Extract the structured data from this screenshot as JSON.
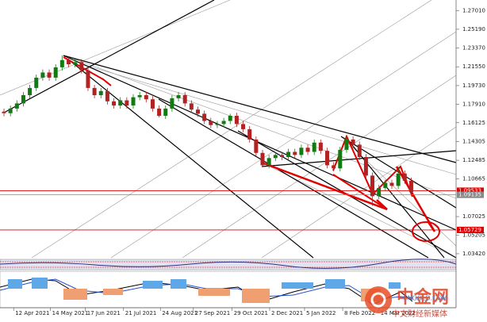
{
  "chart_data": {
    "type": "candlestick",
    "ylim": [
      1.0303,
      1.2803
    ],
    "yticks": [
      {
        "value": 1.2701,
        "label": "1.27010"
      },
      {
        "value": 1.2519,
        "label": "1.25190"
      },
      {
        "value": 1.2337,
        "label": "1.23370"
      },
      {
        "value": 1.2155,
        "label": "1.21550"
      },
      {
        "value": 1.1973,
        "label": "1.19730"
      },
      {
        "value": 1.1791,
        "label": "1.17910"
      },
      {
        "value": 1.16125,
        "label": "1.16125"
      },
      {
        "value": 1.14305,
        "label": "1.14305"
      },
      {
        "value": 1.12485,
        "label": "1.12485"
      },
      {
        "value": 1.10665,
        "label": "1.10665"
      },
      {
        "value": 1.07025,
        "label": "1.07025"
      },
      {
        "value": 1.05205,
        "label": "1.05205"
      },
      {
        "value": 1.0342,
        "label": "1.03420"
      }
    ],
    "xticks": [
      {
        "value": 1.5,
        "label": "12 Apr 2021"
      },
      {
        "value": 7.2,
        "label": "14 May 2021"
      },
      {
        "value": 12.6,
        "label": "17 Jun 2021"
      },
      {
        "value": 18.5,
        "label": "21 Jul 2021"
      },
      {
        "value": 24.2,
        "label": "24 Aug 2021"
      },
      {
        "value": 29.3,
        "label": "27 Sep 2021"
      },
      {
        "value": 35.3,
        "label": "29 Oct 2021"
      },
      {
        "value": 41.1,
        "label": "2 Dec 2021"
      },
      {
        "value": 46.5,
        "label": "5 Jan 2022"
      },
      {
        "value": 52.4,
        "label": "8 Feb 2022"
      },
      {
        "value": 58,
        "label": "14 Mar 2022"
      }
    ],
    "up_color": "#137a13",
    "down_color": "#b22222",
    "open": [
      1.172,
      1.1705,
      1.175,
      1.18,
      1.188,
      1.195,
      1.205,
      1.21,
      1.205,
      1.215,
      1.222,
      1.218,
      1.22,
      1.212,
      1.195,
      1.188,
      1.192,
      1.182,
      1.178,
      1.183,
      1.178,
      1.186,
      1.188,
      1.184,
      1.175,
      1.168,
      1.175,
      1.185,
      1.188,
      1.18,
      1.174,
      1.17,
      1.163,
      1.159,
      1.16,
      1.163,
      1.168,
      1.16,
      1.155,
      1.145,
      1.132,
      1.12,
      1.127,
      1.13,
      1.128,
      1.133,
      1.13,
      1.137,
      1.133,
      1.142,
      1.134,
      1.12,
      1.117,
      1.135,
      1.145,
      1.14,
      1.128,
      1.11,
      1.09,
      1.098,
      1.103,
      1.1,
      1.112,
      1.105
    ],
    "high": [
      1.175,
      1.178,
      1.183,
      1.191,
      1.198,
      1.208,
      1.213,
      1.213,
      1.218,
      1.2266,
      1.225,
      1.223,
      1.223,
      1.215,
      1.198,
      1.195,
      1.195,
      1.185,
      1.186,
      1.186,
      1.189,
      1.191,
      1.191,
      1.187,
      1.178,
      1.178,
      1.188,
      1.191,
      1.191,
      1.183,
      1.177,
      1.173,
      1.166,
      1.163,
      1.166,
      1.17,
      1.171,
      1.163,
      1.158,
      1.148,
      1.135,
      1.13,
      1.133,
      1.133,
      1.136,
      1.136,
      1.14,
      1.14,
      1.145,
      1.145,
      1.137,
      1.123,
      1.138,
      1.148,
      1.148,
      1.143,
      1.131,
      1.113,
      1.101,
      1.106,
      1.106,
      1.1184,
      1.115,
      1.108
    ],
    "low": [
      1.1675,
      1.1675,
      1.172,
      1.177,
      1.185,
      1.192,
      1.202,
      1.202,
      1.202,
      1.212,
      1.215,
      1.215,
      1.209,
      1.192,
      1.185,
      1.185,
      1.179,
      1.175,
      1.175,
      1.175,
      1.175,
      1.183,
      1.181,
      1.172,
      1.1665,
      1.165,
      1.172,
      1.182,
      1.177,
      1.171,
      1.167,
      1.16,
      1.156,
      1.156,
      1.157,
      1.16,
      1.157,
      1.152,
      1.142,
      1.129,
      1.1185,
      1.117,
      1.124,
      1.125,
      1.125,
      1.127,
      1.127,
      1.13,
      1.13,
      1.131,
      1.117,
      1.114,
      1.114,
      1.132,
      1.137,
      1.125,
      1.107,
      1.0806,
      1.087,
      1.095,
      1.097,
      1.097,
      1.102,
      1.0913
    ],
    "close": [
      1.1705,
      1.175,
      1.18,
      1.188,
      1.195,
      1.205,
      1.21,
      1.205,
      1.215,
      1.222,
      1.218,
      1.22,
      1.212,
      1.195,
      1.188,
      1.192,
      1.182,
      1.178,
      1.183,
      1.178,
      1.186,
      1.188,
      1.184,
      1.175,
      1.168,
      1.175,
      1.185,
      1.188,
      1.18,
      1.174,
      1.17,
      1.163,
      1.159,
      1.16,
      1.163,
      1.168,
      1.16,
      1.155,
      1.145,
      1.132,
      1.12,
      1.127,
      1.13,
      1.128,
      1.133,
      1.13,
      1.137,
      1.133,
      1.142,
      1.134,
      1.12,
      1.117,
      1.135,
      1.145,
      1.14,
      1.128,
      1.11,
      1.09,
      1.098,
      1.103,
      1.1,
      1.112,
      1.105,
      1.094
    ],
    "price_lines": [
      {
        "value": 1.09533,
        "label": "1.09533",
        "color": "#e00000"
      },
      {
        "value": 1.09135,
        "label": "1.09135",
        "color": "#888888"
      },
      {
        "value": 1.05729,
        "label": "1.05729",
        "color": "#e00000"
      }
    ],
    "watermark": {
      "name": "中金网",
      "site": "CNGOLD.COM",
      "slogan": "中文财经新媒体"
    }
  }
}
